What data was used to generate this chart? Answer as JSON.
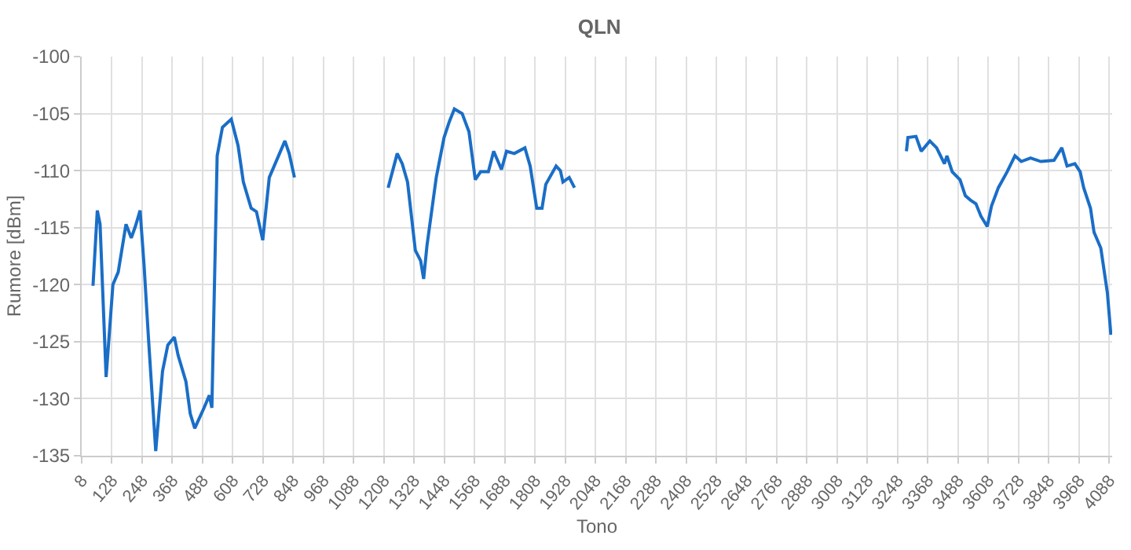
{
  "chart_data": {
    "type": "line",
    "title": "QLN",
    "xlabel": "Tono",
    "ylabel": "Rumore [dBm]",
    "x": [
      53,
      70,
      81,
      105,
      132,
      153,
      184,
      205,
      221,
      240,
      256,
      273,
      302,
      329,
      350,
      376,
      391,
      422,
      439,
      457,
      494,
      515,
      525,
      546,
      567,
      602,
      629,
      650,
      681,
      702,
      727,
      753,
      784,
      815,
      832,
      853,
      1000,
      1225,
      1261,
      1281,
      1302,
      1333,
      1354,
      1366,
      1379,
      1416,
      1447,
      1468,
      1488,
      1519,
      1546,
      1571,
      1592,
      1623,
      1644,
      1675,
      1695,
      1726,
      1768,
      1789,
      1815,
      1836,
      1851,
      1892,
      1909,
      1919,
      1944,
      1965,
      2500,
      3283,
      3289,
      3321,
      3342,
      3376,
      3403,
      3434,
      3444,
      3465,
      3496,
      3517,
      3538,
      3559,
      3579,
      3604,
      3621,
      3648,
      3683,
      3714,
      3739,
      3776,
      3817,
      3869,
      3900,
      3921,
      3952,
      3973,
      3987,
      4014,
      4028,
      4055,
      4081,
      4095
    ],
    "series": [
      {
        "color": "#1a6ec7",
        "values": [
          -120.1,
          -113.5,
          -114.7,
          -128.1,
          -120,
          -118.9,
          -114.7,
          -115.9,
          -114.9,
          -113.5,
          -118.4,
          -124.6,
          -134.6,
          -127.6,
          -125.3,
          -124.6,
          -126.2,
          -128.5,
          -131.3,
          -132.6,
          -130.8,
          -129.7,
          -130.8,
          -108.7,
          -106.2,
          -105.5,
          -107.8,
          -111,
          -113.3,
          -113.6,
          -116.1,
          -110.6,
          -109,
          -107.4,
          -108.5,
          -110.6,
          null,
          -111.5,
          -108.5,
          -109.4,
          -111,
          -117,
          -117.9,
          -119.5,
          -116.6,
          -110.6,
          -107.1,
          -105.7,
          -104.6,
          -105,
          -106.6,
          -110.8,
          -110.1,
          -110.1,
          -108.3,
          -109.9,
          -108.3,
          -108.5,
          -108,
          -109.6,
          -113.3,
          -113.3,
          -111.2,
          -109.6,
          -110,
          -111,
          -110.6,
          -111.5,
          null,
          -108.3,
          -107.1,
          -107,
          -108.3,
          -107.4,
          -108,
          -109.4,
          -108.7,
          -110.1,
          -110.8,
          -112.2,
          -112.6,
          -112.9,
          -114,
          -114.9,
          -113.1,
          -111.5,
          -110.1,
          -108.7,
          -109.2,
          -108.9,
          -109.2,
          -109.1,
          -108,
          -109.6,
          -109.4,
          -110.1,
          -111.5,
          -113.3,
          -115.4,
          -116.8,
          -120.7,
          -124.4
        ]
      }
    ],
    "xlim": [
      8,
      4100
    ],
    "xticks": [
      8,
      128,
      248,
      368,
      488,
      608,
      728,
      848,
      968,
      1088,
      1208,
      1328,
      1448,
      1568,
      1688,
      1808,
      1928,
      2048,
      2168,
      2288,
      2408,
      2528,
      2648,
      2768,
      2888,
      3008,
      3128,
      3248,
      3368,
      3488,
      3608,
      3728,
      3848,
      3968,
      4088
    ],
    "ylim": [
      -135,
      -100
    ],
    "yticks": [
      -135,
      -130,
      -125,
      -120,
      -115,
      -110,
      -105,
      -100
    ],
    "grid": true,
    "marker": "none",
    "line_style": "solid"
  }
}
